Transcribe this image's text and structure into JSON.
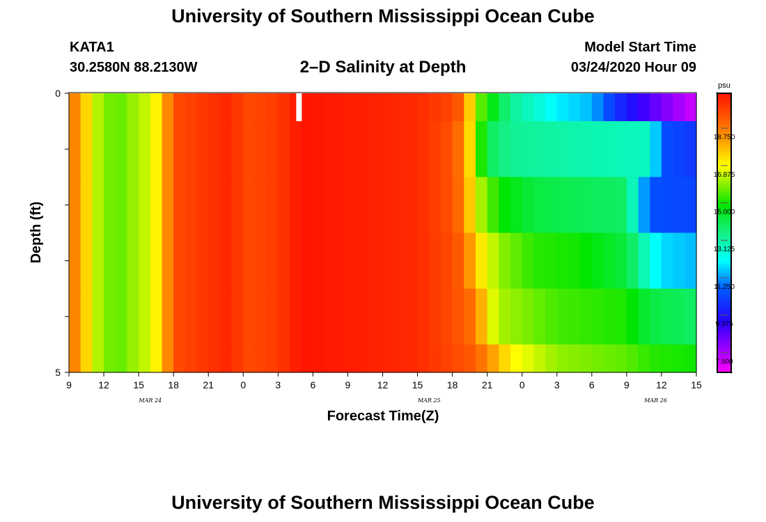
{
  "header": {
    "title": "University of Southern Mississippi Ocean Cube",
    "station": "KATA1",
    "coords": "30.2580N 88.2130W",
    "plot_title": "2–D Salinity at Depth",
    "start_label": "Model Start Time",
    "start_value": "03/24/2020 Hour 09"
  },
  "footer": {
    "title": "University of Southern Mississippi Ocean Cube"
  },
  "chart_data": {
    "type": "heatmap",
    "title": "2–D Salinity at Depth",
    "xlabel": "Forecast Time(Z)",
    "ylabel": "Depth (ft)",
    "x_start_hour": 9,
    "x_hours_span": 54,
    "x_ticks": [
      "9",
      "12",
      "15",
      "18",
      "21",
      "0",
      "3",
      "6",
      "9",
      "12",
      "15",
      "18",
      "21",
      "0",
      "3",
      "6",
      "9",
      "12",
      "15"
    ],
    "date_labels": [
      {
        "text": "MAR 24",
        "hour": 7
      },
      {
        "text": "MAR 25",
        "hour": 31
      },
      {
        "text": "MAR 26",
        "hour": 50.5
      }
    ],
    "y_ticks": [
      "0",
      "5"
    ],
    "ylim": [
      0,
      5
    ],
    "colorbar": {
      "unit": "psu",
      "min": 6.5,
      "max": 20.5,
      "labels": [
        "18.750",
        "16.875",
        "15.000",
        "13.125",
        "11.250",
        "9.375",
        "7.500"
      ],
      "label_values": [
        18.75,
        16.875,
        15.0,
        13.125,
        11.25,
        9.375,
        7.5
      ]
    },
    "missing_marker": {
      "hour": 19.8,
      "depth_from": 0,
      "depth_to": 0.5
    },
    "depth_layers": [
      {
        "from": 0.0,
        "to": 0.5,
        "keys": [
          [
            0,
            18.8
          ],
          [
            1,
            18.3
          ],
          [
            2,
            16.5
          ],
          [
            4,
            15.5
          ],
          [
            6,
            16.2
          ],
          [
            7,
            16.5
          ],
          [
            8,
            17.5
          ],
          [
            9,
            19.5
          ],
          [
            14,
            20.2
          ],
          [
            15,
            19.5
          ],
          [
            18,
            19.8
          ],
          [
            20,
            20.5
          ],
          [
            30,
            20.1
          ],
          [
            33,
            19.6
          ],
          [
            34,
            19.0
          ],
          [
            35,
            16.0
          ],
          [
            38,
            13.3
          ],
          [
            42,
            12.0
          ],
          [
            45,
            11.5
          ],
          [
            47,
            10.0
          ],
          [
            50,
            8.5
          ],
          [
            54,
            7.0
          ]
        ]
      },
      {
        "from": 0.5,
        "to": 1.5,
        "keys": [
          [
            0,
            18.8
          ],
          [
            1,
            18.3
          ],
          [
            2,
            16.5
          ],
          [
            4,
            15.5
          ],
          [
            6,
            16.2
          ],
          [
            7,
            16.5
          ],
          [
            8,
            17.5
          ],
          [
            9,
            19.5
          ],
          [
            14,
            20.2
          ],
          [
            15,
            19.5
          ],
          [
            18,
            19.8
          ],
          [
            20,
            20.5
          ],
          [
            30,
            20.1
          ],
          [
            33,
            19.4
          ],
          [
            34,
            18.5
          ],
          [
            35,
            16.2
          ],
          [
            36,
            14.0
          ],
          [
            38,
            13.3
          ],
          [
            44,
            13.0
          ],
          [
            50,
            12.8
          ],
          [
            51,
            10.5
          ],
          [
            54,
            10.0
          ]
        ]
      },
      {
        "from": 1.5,
        "to": 2.5,
        "keys": [
          [
            0,
            18.8
          ],
          [
            1,
            18.3
          ],
          [
            2,
            16.5
          ],
          [
            4,
            15.5
          ],
          [
            6,
            16.2
          ],
          [
            7,
            16.5
          ],
          [
            8,
            17.5
          ],
          [
            9,
            19.5
          ],
          [
            14,
            20.2
          ],
          [
            15,
            19.5
          ],
          [
            18,
            19.8
          ],
          [
            20,
            20.5
          ],
          [
            30,
            20.1
          ],
          [
            33,
            19.4
          ],
          [
            34,
            18.6
          ],
          [
            35,
            16.5
          ],
          [
            37,
            15.0
          ],
          [
            40,
            14.2
          ],
          [
            44,
            14.0
          ],
          [
            48,
            13.8
          ],
          [
            49,
            12.0
          ],
          [
            50,
            10.5
          ],
          [
            54,
            10.3
          ]
        ]
      },
      {
        "from": 2.5,
        "to": 3.5,
        "keys": [
          [
            0,
            18.8
          ],
          [
            1,
            18.3
          ],
          [
            2,
            16.5
          ],
          [
            4,
            15.5
          ],
          [
            6,
            16.2
          ],
          [
            7,
            16.5
          ],
          [
            8,
            17.5
          ],
          [
            9,
            19.5
          ],
          [
            14,
            20.2
          ],
          [
            15,
            19.5
          ],
          [
            18,
            19.8
          ],
          [
            20,
            20.5
          ],
          [
            30,
            20.1
          ],
          [
            33,
            19.5
          ],
          [
            34,
            19.0
          ],
          [
            35,
            17.5
          ],
          [
            37,
            16.0
          ],
          [
            40,
            15.2
          ],
          [
            44,
            15.0
          ],
          [
            48,
            14.2
          ],
          [
            50,
            12.5
          ],
          [
            51,
            11.8
          ],
          [
            54,
            11.5
          ]
        ]
      },
      {
        "from": 3.5,
        "to": 4.5,
        "keys": [
          [
            0,
            18.8
          ],
          [
            1,
            18.3
          ],
          [
            2,
            16.5
          ],
          [
            4,
            15.5
          ],
          [
            6,
            16.2
          ],
          [
            7,
            16.5
          ],
          [
            8,
            17.5
          ],
          [
            9,
            19.5
          ],
          [
            14,
            20.2
          ],
          [
            15,
            19.5
          ],
          [
            18,
            19.8
          ],
          [
            20,
            20.5
          ],
          [
            30,
            20.1
          ],
          [
            33,
            19.5
          ],
          [
            35,
            18.8
          ],
          [
            36,
            17.0
          ],
          [
            37,
            16.2
          ],
          [
            42,
            15.4
          ],
          [
            48,
            15.1
          ],
          [
            50,
            14.2
          ],
          [
            54,
            13.8
          ]
        ]
      },
      {
        "from": 4.5,
        "to": 5.0,
        "keys": [
          [
            0,
            18.8
          ],
          [
            1,
            18.3
          ],
          [
            2,
            16.5
          ],
          [
            4,
            15.5
          ],
          [
            6,
            16.2
          ],
          [
            7,
            16.5
          ],
          [
            8,
            17.5
          ],
          [
            9,
            19.5
          ],
          [
            14,
            20.2
          ],
          [
            15,
            19.5
          ],
          [
            18,
            19.8
          ],
          [
            20,
            20.5
          ],
          [
            30,
            20.1
          ],
          [
            33,
            19.6
          ],
          [
            35,
            19.2
          ],
          [
            36,
            18.5
          ],
          [
            38,
            17.0
          ],
          [
            42,
            16.0
          ],
          [
            48,
            15.6
          ],
          [
            50,
            15.2
          ],
          [
            54,
            15.0
          ]
        ]
      }
    ]
  }
}
